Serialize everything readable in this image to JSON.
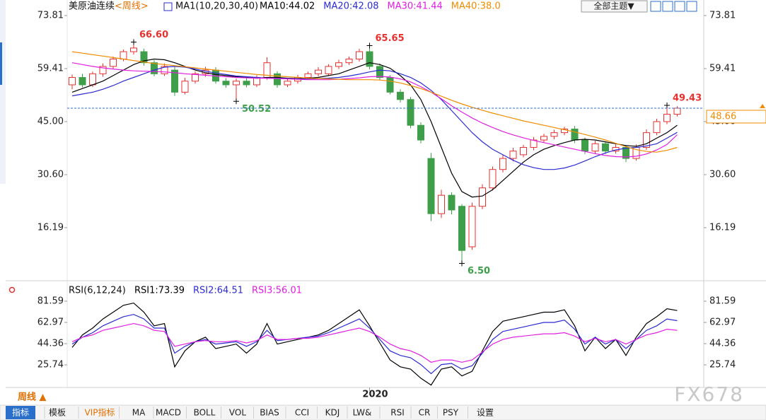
{
  "chart_data": [
    {
      "type": "candlestick",
      "title": "美原油连续",
      "period": "<周线>",
      "indicator_label": "MA1(10,20,30,40)",
      "categories": [
        null,
        null,
        null,
        null,
        null,
        null,
        null,
        null,
        null,
        null,
        null,
        null,
        null,
        null,
        null,
        null,
        null,
        null,
        null,
        null,
        null,
        null,
        null,
        null,
        null,
        null,
        null,
        null,
        null,
        "2020",
        null,
        null,
        null,
        null,
        null,
        null,
        null,
        null,
        null,
        null,
        null,
        null,
        null,
        null,
        null,
        null,
        null,
        null,
        null,
        null,
        null,
        null,
        null,
        null,
        null,
        null,
        null,
        null,
        null,
        null
      ],
      "open": [
        55,
        57,
        55,
        58,
        60,
        62,
        64,
        64,
        61,
        58,
        59,
        53,
        56,
        58,
        59,
        56,
        55,
        56,
        55,
        57,
        58,
        55,
        56,
        57,
        58,
        58,
        60,
        61,
        62,
        64,
        60,
        57,
        53,
        51,
        44,
        35,
        20,
        25,
        22,
        11,
        22,
        27,
        32,
        35,
        36,
        38,
        40,
        41,
        42,
        43,
        40,
        37,
        39,
        37,
        38,
        35,
        38,
        42,
        45,
        47
      ],
      "high": [
        57.8,
        58,
        58.6,
        60.8,
        62.7,
        64.6,
        66.6,
        64.8,
        61.7,
        60.8,
        59.9,
        56.9,
        58.7,
        59.9,
        59.8,
        56.8,
        56.7,
        56.8,
        57.6,
        62.5,
        58.7,
        56.6,
        57.7,
        58.6,
        59.8,
        60.6,
        61.8,
        62.7,
        64.8,
        65.65,
        60.8,
        57.6,
        53.8,
        51.7,
        44.8,
        36.5,
        26.5,
        25.8,
        22.6,
        23,
        28,
        32.8,
        36,
        37.9,
        38.7,
        40.8,
        41.7,
        42.8,
        43.6,
        43.8,
        40.7,
        39.8,
        39.7,
        38.8,
        38.7,
        38.8,
        42.9,
        45.8,
        49.43,
        49.2
      ],
      "low": [
        53.8,
        54.3,
        54.4,
        57.2,
        59.3,
        61.4,
        63.2,
        60.2,
        57.3,
        57.4,
        52,
        52.4,
        55.3,
        57.2,
        55.3,
        54.2,
        50.52,
        54.3,
        54.4,
        56.4,
        54.2,
        54.4,
        55.3,
        56.4,
        57.3,
        57.4,
        59.3,
        60.4,
        61.3,
        59.2,
        56.3,
        52.4,
        50.2,
        43.2,
        39.1,
        18,
        18.8,
        19.8,
        6.5,
        10.2,
        21.2,
        26.3,
        31.2,
        34.2,
        35.3,
        37.2,
        39.3,
        40.2,
        41.3,
        39.2,
        36.2,
        36.3,
        36.2,
        36.3,
        34,
        34.4,
        37.3,
        41.3,
        44.3,
        46.4
      ],
      "close": [
        57,
        55,
        58,
        60,
        62,
        64,
        65,
        61,
        58,
        60,
        53,
        56,
        58,
        59,
        56,
        55,
        56,
        55,
        57,
        61,
        55,
        56,
        57,
        58,
        59,
        60,
        61,
        62,
        64,
        60,
        57,
        53,
        51,
        44,
        40,
        20,
        25,
        21,
        10,
        22,
        27,
        32,
        35,
        37,
        38,
        40,
        41,
        42,
        43,
        40,
        37,
        39,
        37,
        38,
        35,
        38,
        42,
        45,
        47,
        48.66
      ],
      "up_color": "#e8312f",
      "down_color": "#3f9e49",
      "series": [
        {
          "name": "MA10:44.02",
          "color": "#000000",
          "values": [
            53,
            54,
            55,
            56,
            57.5,
            59,
            60.5,
            61.5,
            62,
            61.8,
            61,
            60,
            59,
            58.3,
            57.8,
            57.5,
            57.2,
            57,
            56.8,
            57,
            57,
            56.8,
            56.7,
            56.8,
            57,
            57.5,
            58,
            59,
            60,
            61,
            60.5,
            59.5,
            57.5,
            55,
            51,
            45,
            38,
            31,
            26,
            24.5,
            24.8,
            26.5,
            29,
            31.5,
            34,
            36,
            37.5,
            38.5,
            39.3,
            40,
            40.2,
            40,
            39.5,
            39,
            38.5,
            38.3,
            39,
            40.5,
            42,
            44.02
          ]
        },
        {
          "name": "MA20:42.08",
          "color": "#2b2bd0",
          "values": [
            52,
            52.5,
            53,
            53.8,
            54.8,
            56,
            57,
            58,
            59,
            59.8,
            60,
            59.8,
            59.3,
            58.7,
            58.2,
            57.8,
            57.4,
            57.2,
            57,
            56.8,
            56.8,
            56.7,
            56.6,
            56.6,
            56.7,
            56.8,
            57,
            57.4,
            57.9,
            58.5,
            59,
            58.8,
            58,
            57,
            55.5,
            53.5,
            51,
            48,
            45,
            42,
            39.5,
            37.5,
            36,
            34.5,
            33.3,
            32.5,
            32,
            32,
            32.4,
            33.2,
            34.3,
            35.5,
            36.5,
            37.3,
            37.8,
            38,
            38.4,
            39,
            40.5,
            42.08
          ]
        },
        {
          "name": "MA30:41.44",
          "color": "#e020e0",
          "values": [
            61,
            60.5,
            60,
            59.6,
            59.3,
            59,
            58.8,
            58.7,
            58.6,
            58.5,
            58.3,
            58,
            57.8,
            57.6,
            57.4,
            57.2,
            57,
            56.9,
            56.8,
            56.8,
            56.7,
            56.6,
            56.5,
            56.4,
            56.4,
            56.4,
            56.5,
            56.7,
            56.9,
            57.2,
            57.3,
            57.1,
            56.6,
            55.8,
            54.5,
            53,
            51.2,
            49.3,
            47.6,
            46,
            44.6,
            43.4,
            42.3,
            41.4,
            40.6,
            39.9,
            39.3,
            38.7,
            38.1,
            37.5,
            36.9,
            36.3,
            35.8,
            35.5,
            35.4,
            35.6,
            36.2,
            37.3,
            38.8,
            41.44
          ]
        },
        {
          "name": "MA40:38.0",
          "color": "#f08c00",
          "values": [
            64,
            63.6,
            63.2,
            62.8,
            62.4,
            62,
            61.6,
            61.2,
            60.8,
            60.5,
            60.2,
            59.9,
            59.6,
            59.3,
            59,
            58.7,
            58.4,
            58.1,
            57.8,
            57.6,
            57.4,
            57.2,
            57,
            56.8,
            56.7,
            56.6,
            56.5,
            56.4,
            56.4,
            56.4,
            56.3,
            56,
            55.5,
            54.8,
            54,
            53,
            51.9,
            50.8,
            49.8,
            48.9,
            48.1,
            47.3,
            46.6,
            45.9,
            45.2,
            44.6,
            44,
            43.4,
            42.8,
            42.2,
            41.5,
            40.8,
            40,
            39.1,
            38.2,
            37.4,
            36.9,
            36.7,
            37.2,
            38.0
          ]
        }
      ],
      "ylim": [
        2.17,
        78.04
      ],
      "yticks": [
        73.81,
        59.41,
        {
          "value": 45,
          "label": "45.00"
        },
        {
          "value": 30.6,
          "label": "30.60"
        },
        16.19
      ],
      "annotations": [
        {
          "value": 66.6,
          "label": "66.60"
        },
        {
          "value": 65.65,
          "label": "65.65"
        },
        {
          "value": 50.52,
          "label": "50.52"
        },
        {
          "value": 6.5,
          "label": "6.50"
        },
        {
          "value": 49.43,
          "label": "49.43"
        }
      ],
      "last_price": {
        "value": 48.66,
        "label": "48.66"
      }
    },
    {
      "type": "line",
      "title": "RSI(6,12,24)",
      "series": [
        {
          "name": "RSI1:73.39",
          "color": "#000000",
          "values": [
            41,
            52,
            58,
            66,
            72,
            78,
            80,
            72,
            60,
            62,
            24,
            38,
            46,
            50,
            40,
            42,
            44,
            36,
            44,
            62,
            44,
            46,
            48,
            50,
            52,
            56,
            62,
            68,
            74,
            60,
            45,
            30,
            24,
            22,
            14,
            8,
            22,
            24,
            16,
            20,
            38,
            55,
            64,
            66,
            68,
            70,
            72,
            72,
            74,
            60,
            38,
            50,
            40,
            48,
            34,
            50,
            62,
            68,
            75,
            73.39
          ]
        },
        {
          "name": "RSI2:64.51",
          "color": "#2b2bd0",
          "values": [
            44,
            50,
            54,
            60,
            64,
            68,
            70,
            66,
            58,
            58,
            36,
            42,
            46,
            48,
            44,
            45,
            46,
            42,
            46,
            56,
            47,
            48,
            49,
            50,
            51,
            54,
            58,
            62,
            66,
            58,
            48,
            38,
            34,
            32,
            26,
            18,
            26,
            27,
            22,
            25,
            36,
            48,
            55,
            57,
            59,
            61,
            63,
            63,
            65,
            57,
            44,
            50,
            44,
            48,
            40,
            48,
            56,
            60,
            66,
            64.51
          ]
        },
        {
          "name": "RSI3:56.01",
          "color": "#e020e0",
          "values": [
            46,
            50,
            52,
            56,
            58,
            60,
            62,
            60,
            56,
            55,
            42,
            44,
            46,
            47,
            46,
            46,
            47,
            45,
            47,
            52,
            48,
            48,
            49,
            49,
            50,
            52,
            54,
            56,
            58,
            55,
            50,
            44,
            40,
            38,
            34,
            28,
            30,
            30,
            28,
            30,
            37,
            44,
            48,
            50,
            51,
            52,
            53,
            53,
            54,
            51,
            46,
            49,
            46,
            48,
            44,
            48,
            52,
            54,
            57,
            56.01
          ]
        }
      ],
      "ylim": [
        7.11,
        96.49
      ],
      "yticks": [
        81.59,
        62.97,
        44.36,
        25.74
      ]
    }
  ],
  "ui": {
    "theme_button": "全部主题▼",
    "period_switch": "周线 ▲",
    "watermark": "FX678",
    "tabs": [
      "指标",
      "模板",
      "VIP指标",
      "MA",
      "MACD",
      "BOLL",
      "VOL",
      "BIAS",
      "CCI",
      "KDJ",
      "LW&",
      "RSI",
      "CR",
      "PSY",
      "设置"
    ]
  }
}
